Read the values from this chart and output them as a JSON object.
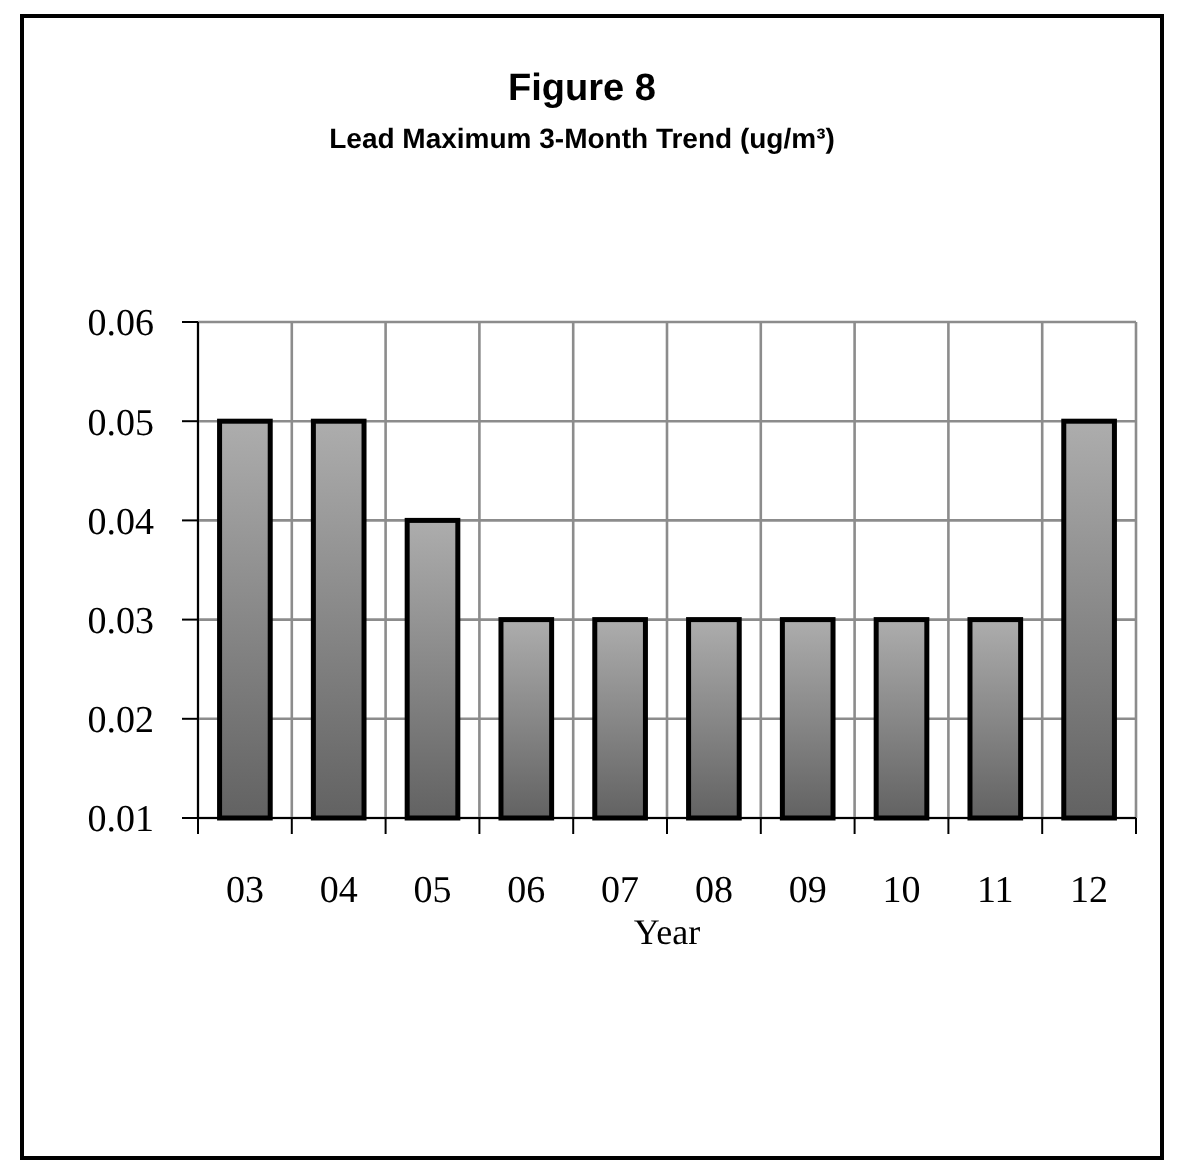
{
  "chart_data": {
    "type": "bar",
    "title": "Figure 8",
    "subtitle": "Lead Maximum 3-Month Trend (ug/m³)",
    "xlabel": "Year",
    "categories": [
      "03",
      "04",
      "05",
      "06",
      "07",
      "08",
      "09",
      "10",
      "11",
      "12"
    ],
    "values": [
      0.05,
      0.05,
      0.04,
      0.03,
      0.03,
      0.03,
      0.03,
      0.03,
      0.03,
      0.05
    ],
    "color": "#8c8c8c",
    "ylim": [
      0.01,
      0.06
    ],
    "yticks": [
      0.01,
      0.02,
      0.03,
      0.04,
      0.05,
      0.06
    ],
    "grid": true
  }
}
